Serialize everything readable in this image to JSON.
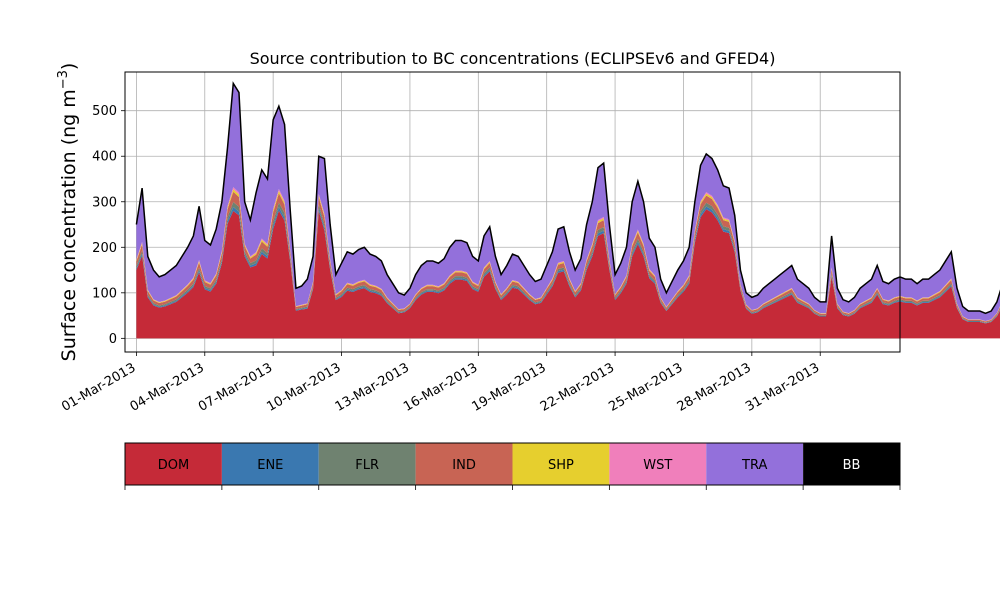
{
  "chart_data": {
    "type": "area",
    "stacked": true,
    "title": "Source contribution to BC concentrations (ECLIPSEv6 and GFED4)",
    "ylabel": "Surface concentration (ng m",
    "ylabel_unit_exp": "−3",
    "ylabel_close": ")",
    "ylim": [
      -30,
      585
    ],
    "yticks": [
      0,
      100,
      200,
      300,
      400,
      500
    ],
    "xlim": [
      "2013-02-28T12:00",
      "2013-04-03T12:00"
    ],
    "xtick_dates": [
      "2013-03-01",
      "2013-03-04",
      "2013-03-07",
      "2013-03-10",
      "2013-03-13",
      "2013-03-16",
      "2013-03-19",
      "2013-03-22",
      "2013-03-25",
      "2013-03-28",
      "2013-03-31"
    ],
    "xtick_labels": [
      "01-Mar-2013",
      "04-Mar-2013",
      "07-Mar-2013",
      "10-Mar-2013",
      "13-Mar-2013",
      "16-Mar-2013",
      "19-Mar-2013",
      "22-Mar-2013",
      "25-Mar-2013",
      "28-Mar-2013",
      "31-Mar-2013"
    ],
    "grid": true,
    "colors": {
      "DOM": "#c52a38",
      "ENE": "#3a78b0",
      "FLR": "#6f8270",
      "IND": "#c86454",
      "SHP": "#e6cf2e",
      "WST": "#f07fbb",
      "TRA": "#9370db",
      "BB": "#000000"
    },
    "legend": {
      "placement": "bottom",
      "entries": [
        {
          "key": "DOM",
          "label": "DOM",
          "text_color": "#000000"
        },
        {
          "key": "ENE",
          "label": "ENE",
          "text_color": "#000000"
        },
        {
          "key": "FLR",
          "label": "FLR",
          "text_color": "#000000"
        },
        {
          "key": "IND",
          "label": "IND",
          "text_color": "#000000"
        },
        {
          "key": "SHP",
          "label": "SHP",
          "text_color": "#000000"
        },
        {
          "key": "WST",
          "label": "WST",
          "text_color": "#000000"
        },
        {
          "key": "TRA",
          "label": "TRA",
          "text_color": "#000000"
        },
        {
          "key": "BB",
          "label": "BB",
          "text_color": "#ffffff"
        }
      ]
    },
    "series_time_start": "2013-03-01T00:00",
    "series_time_step_hours": 6,
    "total": [
      250,
      330,
      180,
      150,
      135,
      140,
      150,
      160,
      180,
      200,
      225,
      290,
      215,
      205,
      240,
      300,
      420,
      560,
      540,
      300,
      260,
      320,
      370,
      350,
      480,
      510,
      470,
      280,
      110,
      115,
      130,
      180,
      400,
      395,
      250,
      140,
      165,
      190,
      185,
      195,
      200,
      185,
      180,
      170,
      140,
      120,
      100,
      95,
      110,
      140,
      160,
      170,
      170,
      165,
      175,
      200,
      215,
      215,
      210,
      180,
      170,
      225,
      245,
      180,
      140,
      160,
      185,
      180,
      160,
      140,
      125,
      130,
      160,
      190,
      240,
      245,
      190,
      150,
      175,
      250,
      300,
      375,
      385,
      250,
      140,
      165,
      200,
      300,
      345,
      300,
      220,
      200,
      130,
      100,
      125,
      150,
      170,
      200,
      300,
      380,
      405,
      395,
      370,
      335,
      330,
      270,
      150,
      100,
      90,
      95,
      110,
      120,
      130,
      140,
      150,
      160,
      130,
      120,
      110,
      90,
      80,
      80,
      225,
      110,
      85,
      80,
      90,
      110,
      120,
      130,
      160,
      125,
      120,
      130,
      135,
      130,
      130,
      120,
      130,
      130,
      140,
      150,
      170,
      190,
      110,
      70,
      60,
      60,
      60,
      55,
      60,
      80,
      120,
      100,
      110,
      100,
      90,
      120,
      140,
      90,
      75,
      70,
      70,
      75,
      70,
      80,
      90,
      90,
      80,
      75,
      80,
      140,
      170,
      210,
      200,
      110,
      95,
      110,
      140,
      140,
      130,
      130,
      160,
      175,
      195,
      210,
      220,
      230,
      260,
      295,
      290,
      230,
      180,
      165,
      190,
      175,
      180,
      175,
      180,
      200,
      210,
      220,
      230,
      240,
      280,
      335,
      335,
      335,
      330,
      330,
      300,
      250,
      240,
      260,
      280,
      310,
      330,
      330,
      300,
      250,
      225,
      185,
      230,
      240,
      200,
      150,
      130,
      115,
      110,
      175,
      285,
      260,
      255,
      310,
      300,
      240,
      200,
      175,
      185,
      215,
      240,
      245,
      230,
      240,
      230,
      250,
      300,
      240,
      450,
      420,
      350,
      300,
      270,
      260,
      280,
      300
    ],
    "dom_fraction": [
      0.6,
      0.55,
      0.5,
      0.48,
      0.5,
      0.5,
      0.5,
      0.5,
      0.5,
      0.5,
      0.5,
      0.5,
      0.5,
      0.5,
      0.5,
      0.55,
      0.6,
      0.5,
      0.5,
      0.6,
      0.6,
      0.5,
      0.5,
      0.5,
      0.5,
      0.55,
      0.55,
      0.6,
      0.55,
      0.55,
      0.5,
      0.6,
      0.7,
      0.6,
      0.6,
      0.6,
      0.55,
      0.55,
      0.55,
      0.55,
      0.55,
      0.55,
      0.55,
      0.55,
      0.55,
      0.55,
      0.55,
      0.6,
      0.6,
      0.6,
      0.6,
      0.6,
      0.6,
      0.6,
      0.6,
      0.6,
      0.6,
      0.6,
      0.6,
      0.6,
      0.6,
      0.6,
      0.6,
      0.6,
      0.6,
      0.6,
      0.6,
      0.6,
      0.6,
      0.6,
      0.6,
      0.6,
      0.6,
      0.6,
      0.6,
      0.6,
      0.6,
      0.6,
      0.6,
      0.6,
      0.6,
      0.6,
      0.6,
      0.6,
      0.6,
      0.6,
      0.6,
      0.6,
      0.6,
      0.6,
      0.6,
      0.6,
      0.6,
      0.6,
      0.6,
      0.6,
      0.6,
      0.6,
      0.7,
      0.7,
      0.7,
      0.7,
      0.7,
      0.7,
      0.7,
      0.7,
      0.7,
      0.65,
      0.6,
      0.6,
      0.6,
      0.6,
      0.6,
      0.6,
      0.6,
      0.6,
      0.6,
      0.6,
      0.6,
      0.6,
      0.6,
      0.6,
      0.6,
      0.6,
      0.6,
      0.6,
      0.6,
      0.6,
      0.6,
      0.6,
      0.6,
      0.6,
      0.6,
      0.6,
      0.6,
      0.6,
      0.6,
      0.6,
      0.6,
      0.6,
      0.6,
      0.6,
      0.6,
      0.6,
      0.6,
      0.6,
      0.6,
      0.6,
      0.6,
      0.6,
      0.6,
      0.6,
      0.6,
      0.6,
      0.6,
      0.6,
      0.6,
      0.6,
      0.6,
      0.6,
      0.6,
      0.6,
      0.6,
      0.6,
      0.6,
      0.6,
      0.6,
      0.6,
      0.6,
      0.6,
      0.6,
      0.6,
      0.6,
      0.6,
      0.6,
      0.6,
      0.6,
      0.6,
      0.6,
      0.6,
      0.6,
      0.6,
      0.6,
      0.6,
      0.6,
      0.6,
      0.6,
      0.6,
      0.6,
      0.6,
      0.6,
      0.6,
      0.6,
      0.6,
      0.6,
      0.6,
      0.6,
      0.6,
      0.6,
      0.6,
      0.6,
      0.6,
      0.6,
      0.6,
      0.6,
      0.6,
      0.6,
      0.6,
      0.6,
      0.6,
      0.6,
      0.6,
      0.6,
      0.6,
      0.6,
      0.6,
      0.6,
      0.6,
      0.6,
      0.6,
      0.6,
      0.6,
      0.6,
      0.6,
      0.6,
      0.6,
      0.6,
      0.6,
      0.6,
      0.6,
      0.6,
      0.6,
      0.6,
      0.6,
      0.6,
      0.6,
      0.6,
      0.6,
      0.6,
      0.6,
      0.6,
      0.6,
      0.6,
      0.6,
      0.6,
      0.6,
      0.6,
      0.6,
      0.6,
      0.6,
      0.6,
      0.6,
      0.6,
      0.6,
      0.6,
      0.6,
      0.6,
      0.6,
      0.6,
      0.6,
      0.6,
      0.6,
      0.6
    ],
    "minor_fractions": {
      "ENE": 0.015,
      "FLR": 0.02,
      "IND": 0.04,
      "SHP": 0.01,
      "WST": 0.008,
      "BB": 0.004
    }
  }
}
